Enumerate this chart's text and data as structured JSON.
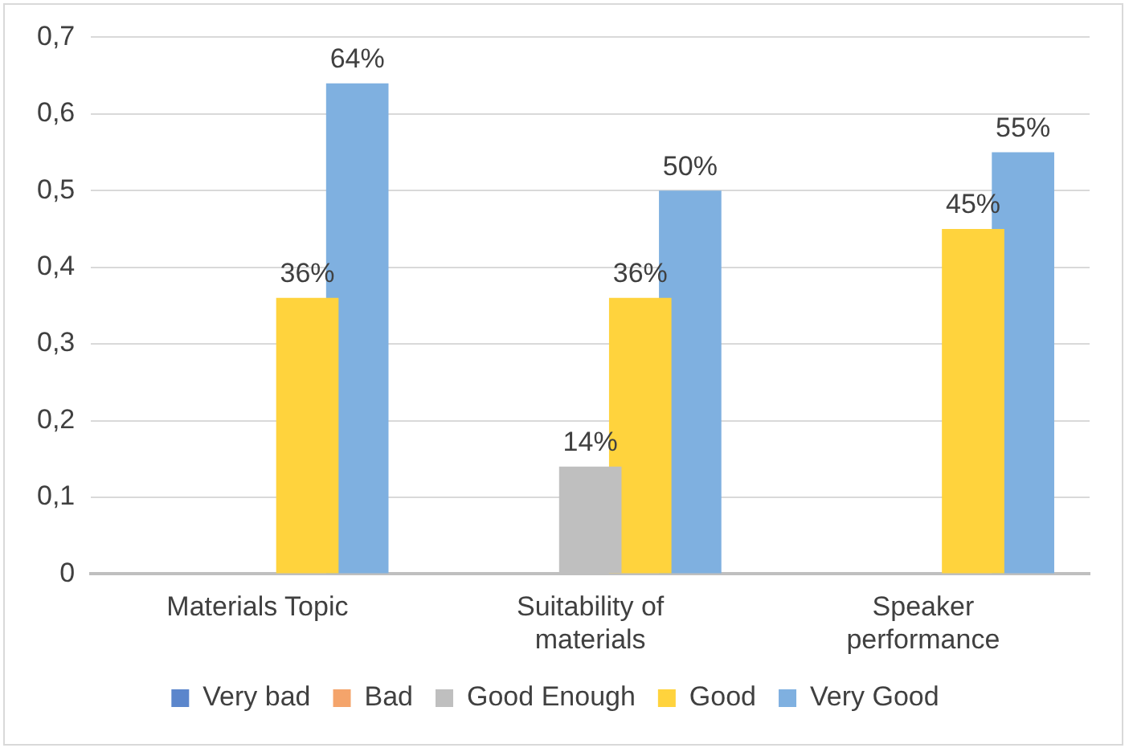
{
  "chart_data": {
    "type": "bar",
    "categories": [
      "Materials Topic",
      "Suitability of materials",
      "Speaker performance"
    ],
    "series": [
      {
        "name": "Very bad",
        "color": "#5b86cc",
        "values": [
          0,
          0,
          0
        ],
        "value_labels": [
          null,
          null,
          null
        ]
      },
      {
        "name": "Bad",
        "color": "#f4a46b",
        "values": [
          0,
          0,
          0
        ],
        "value_labels": [
          null,
          null,
          null
        ]
      },
      {
        "name": "Good Enough",
        "color": "#bfbfbf",
        "values": [
          0,
          0.14,
          0
        ],
        "value_labels": [
          null,
          "14%",
          null
        ]
      },
      {
        "name": "Good",
        "color": "#ffd33d",
        "values": [
          0.36,
          0.36,
          0.45
        ],
        "value_labels": [
          "36%",
          "36%",
          "45%"
        ]
      },
      {
        "name": "Very Good",
        "color": "#7fb0e0",
        "values": [
          0.64,
          0.5,
          0.55
        ],
        "value_labels": [
          "64%",
          "50%",
          "55%"
        ]
      }
    ],
    "ylim": [
      0,
      0.7
    ],
    "yticks": [
      {
        "value": 0,
        "label": "0"
      },
      {
        "value": 0.1,
        "label": "0,1"
      },
      {
        "value": 0.2,
        "label": "0,2"
      },
      {
        "value": 0.3,
        "label": "0,3"
      },
      {
        "value": 0.4,
        "label": "0,4"
      },
      {
        "value": 0.5,
        "label": "0,5"
      },
      {
        "value": 0.6,
        "label": "0,6"
      },
      {
        "value": 0.7,
        "label": "0,7"
      }
    ],
    "grid": "y",
    "legend": "bottom"
  }
}
